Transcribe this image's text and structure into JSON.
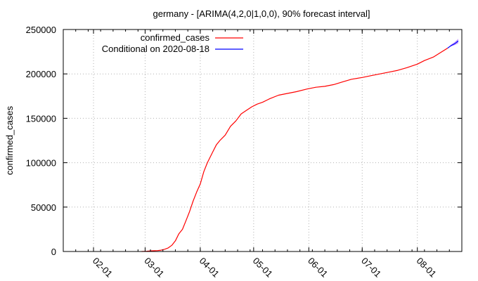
{
  "chart_data": {
    "type": "line",
    "title": "germany -  [ARIMA(4,2,0|1,0,0), 90% forecast interval]",
    "xlabel": "",
    "ylabel": "confirmed_cases",
    "xlim": [
      "2020-01-15",
      "2020-08-26"
    ],
    "ylim": [
      0,
      250000
    ],
    "y_ticks": [
      0,
      50000,
      100000,
      150000,
      200000,
      250000
    ],
    "x_ticks": [
      {
        "date": "2020-02-01",
        "label": "02-01"
      },
      {
        "date": "2020-03-01",
        "label": "03-01"
      },
      {
        "date": "2020-04-01",
        "label": "04-01"
      },
      {
        "date": "2020-05-01",
        "label": "05-01"
      },
      {
        "date": "2020-06-01",
        "label": "06-01"
      },
      {
        "date": "2020-07-01",
        "label": "07-01"
      },
      {
        "date": "2020-08-01",
        "label": "08-01"
      }
    ],
    "grid": true,
    "legend_position": "top-right",
    "series": [
      {
        "name": "confirmed_cases",
        "color": "#ff0000",
        "x": [
          "2020-02-28",
          "2020-03-02",
          "2020-03-05",
          "2020-03-08",
          "2020-03-10",
          "2020-03-12",
          "2020-03-14",
          "2020-03-16",
          "2020-03-18",
          "2020-03-20",
          "2020-03-22",
          "2020-03-24",
          "2020-03-26",
          "2020-03-28",
          "2020-03-30",
          "2020-04-01",
          "2020-04-03",
          "2020-04-05",
          "2020-04-08",
          "2020-04-10",
          "2020-04-12",
          "2020-04-15",
          "2020-04-18",
          "2020-04-21",
          "2020-04-24",
          "2020-04-27",
          "2020-04-30",
          "2020-05-03",
          "2020-05-06",
          "2020-05-10",
          "2020-05-15",
          "2020-05-20",
          "2020-05-25",
          "2020-05-31",
          "2020-06-05",
          "2020-06-10",
          "2020-06-15",
          "2020-06-20",
          "2020-06-25",
          "2020-07-01",
          "2020-07-06",
          "2020-07-11",
          "2020-07-16",
          "2020-07-21",
          "2020-07-26",
          "2020-08-01",
          "2020-08-05",
          "2020-08-10",
          "2020-08-14",
          "2020-08-18"
        ],
        "y": [
          0,
          300,
          800,
          1000,
          1500,
          2500,
          4000,
          7000,
          12000,
          20000,
          25000,
          35000,
          45000,
          57000,
          67000,
          76000,
          90000,
          100000,
          112000,
          120000,
          125000,
          131000,
          141000,
          147000,
          155000,
          159000,
          163000,
          166000,
          168000,
          172000,
          176000,
          178000,
          180000,
          183000,
          185000,
          186000,
          188000,
          191000,
          194000,
          196000,
          198000,
          200000,
          202000,
          204000,
          207000,
          211000,
          215000,
          219000,
          224000,
          229000
        ]
      },
      {
        "name": "Conditional on 2020-08-18",
        "color": "#0000ff",
        "band_color": "#c8a0ff",
        "x": [
          "2020-08-18",
          "2020-08-20",
          "2020-08-22",
          "2020-08-24"
        ],
        "y": [
          229000,
          232000,
          234000,
          237000
        ],
        "lower": [
          229000,
          231000,
          232500,
          234500
        ],
        "upper": [
          229000,
          233000,
          236000,
          239500
        ]
      }
    ]
  }
}
